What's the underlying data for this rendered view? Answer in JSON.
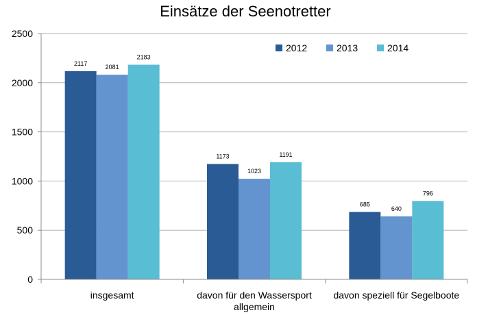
{
  "chart_data": {
    "type": "bar",
    "title": "Einsätze der Seenotretter",
    "categories": [
      [
        "insgesamt"
      ],
      [
        "davon für den Wassersport",
        "allgemein"
      ],
      [
        "davon speziell für Segelboote"
      ]
    ],
    "series": [
      {
        "name": "2012",
        "color": "#2a5b94",
        "values": [
          2117,
          1173,
          685
        ]
      },
      {
        "name": "2013",
        "color": "#6394cf",
        "values": [
          2081,
          1023,
          640
        ]
      },
      {
        "name": "2014",
        "color": "#59bdd3",
        "values": [
          2183,
          1191,
          796
        ]
      }
    ],
    "ylim": [
      0,
      2500
    ],
    "yticks": [
      0,
      500,
      1000,
      1500,
      2000,
      2500
    ],
    "grid": true,
    "legend_position": "top-right",
    "data_labels": true
  }
}
